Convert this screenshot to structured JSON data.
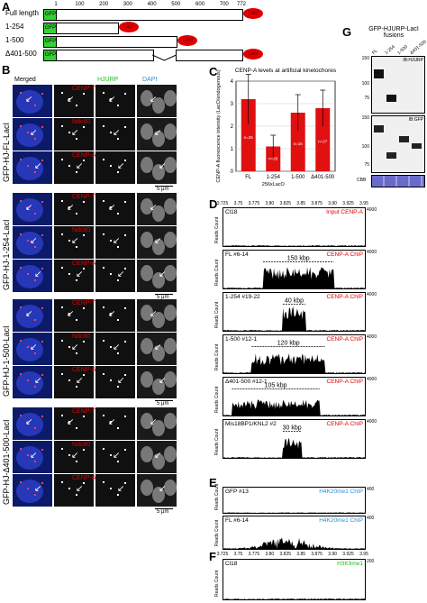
{
  "panelA": {
    "label": "A",
    "constructs": [
      {
        "name": "Full length",
        "tag": "GFP",
        "end": 772
      },
      {
        "name": "1-254",
        "tag": "GFP",
        "end": 254
      },
      {
        "name": "1-500",
        "tag": "GFP",
        "end": 500
      },
      {
        "name": "Δ401-500",
        "tag": "GFP",
        "end": 772
      }
    ],
    "ticks": [
      "1",
      "100",
      "200",
      "300",
      "400",
      "500",
      "600",
      "700",
      "772"
    ],
    "laci": "LacI"
  },
  "panelB": {
    "label": "B",
    "headers": {
      "merged": "Merged",
      "hjurp": "HJURP",
      "dapi": "DAPI"
    },
    "groups": [
      {
        "name": "GFP-HJ-FL-LacI",
        "rows": [
          "CENP-T",
          "Ndc80",
          "CENP-A"
        ]
      },
      {
        "name": "GFP-HJ-1-254-LacI",
        "rows": [
          "CENP-T",
          "Ndc80",
          "CENP-A"
        ]
      },
      {
        "name": "GFP-HJ-1-500-LacI",
        "rows": [
          "CENP-T",
          "Ndc80",
          "CENP-A"
        ]
      },
      {
        "name": "GFP-HJ-Δ401-500-LacI",
        "rows": [
          "CENP-T",
          "Ndc80",
          "CENP-A"
        ]
      }
    ],
    "scalebar": "5 μm"
  },
  "panelC": {
    "label": "C",
    "chart_data": {
      "type": "bar",
      "title": "CENP-A levels at artificial kinetochores",
      "ylabel": "CENP-A fluorescence intensity (LacO/endogenous)",
      "categories": [
        "FL",
        "1-254",
        "1-500",
        "Δ401-500"
      ],
      "values": [
        3.2,
        1.1,
        2.6,
        2.8
      ],
      "errors": [
        1.1,
        0.5,
        0.8,
        0.8
      ],
      "ylim": [
        0,
        4
      ],
      "yticks": [
        "0",
        "1",
        "2",
        "3",
        "4"
      ],
      "n_labels": [
        "n=25",
        "n=28",
        "n=16",
        "n=27"
      ],
      "xnote": "256xLacO"
    }
  },
  "panelD": {
    "label": "D",
    "xticks": [
      "3.725",
      "3.75",
      "3.775",
      "3.80",
      "3.825",
      "3.85",
      "3.875",
      "3.90",
      "3.925",
      "3.95"
    ],
    "tracks": [
      {
        "name": "Cl18",
        "chip": "Input CENP-A",
        "max": "4000",
        "span": ""
      },
      {
        "name": "FL #6-14",
        "chip": "CENP-A ChIP",
        "max": "4000",
        "span": "150 kbp"
      },
      {
        "name": "1-254 #19-22",
        "chip": "CENP-A ChIP",
        "max": "4000",
        "span": "40 kbp"
      },
      {
        "name": "1-500 #12-1",
        "chip": "CENP-A ChIP",
        "max": "4000",
        "span": "120 kbp"
      },
      {
        "name": "Δ401-500 #12-1",
        "chip": "CENP-A ChIP",
        "max": "4000",
        "span": "105 kbp"
      },
      {
        "name": "Mis18BP1/KNL2 #2",
        "chip": "CENP-A ChIP",
        "max": "4000",
        "span": "30 kbp"
      }
    ],
    "ylabel": "Reads Count"
  },
  "panelE": {
    "label": "E",
    "tracks": [
      {
        "name": "GFP #13",
        "chip": "H4K20me1 ChIP",
        "max": "400"
      },
      {
        "name": "FL #6-14",
        "chip": "H4K20me1 ChIP",
        "max": "400"
      }
    ]
  },
  "panelF": {
    "label": "F",
    "tracks": [
      {
        "name": "Cl18",
        "chip": "H3K9me1",
        "max": "200"
      }
    ],
    "xticks": [
      "3.725",
      "3.75",
      "3.775",
      "3.80",
      "3.825",
      "3.85",
      "3.875",
      "3.90",
      "3.925",
      "3.95"
    ]
  },
  "panelG": {
    "label": "G",
    "title": "GFP-HJURP-LacI fusions",
    "lanes": [
      "FL",
      "1-254",
      "1-500",
      "Δ401-500"
    ],
    "blot1": "IB:HJURP",
    "blot2": "IB:GFP",
    "markers": [
      "150",
      "100",
      "75"
    ],
    "stain": "CBB"
  }
}
